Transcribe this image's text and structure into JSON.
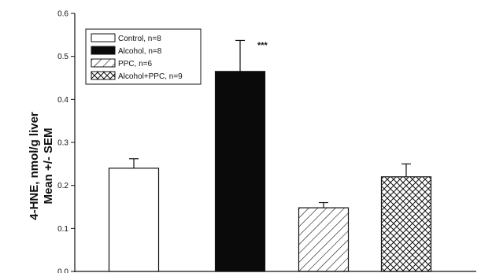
{
  "chart_data": {
    "type": "bar",
    "categories": [
      "Control, n=8",
      "Alcohol, n=8",
      "PPC, n=6",
      "Alcohol+PPC, n=9"
    ],
    "values": [
      0.24,
      0.465,
      0.148,
      0.22
    ],
    "errors": [
      0.022,
      0.072,
      0.012,
      0.03
    ],
    "fills": [
      "white",
      "black",
      "hatch",
      "crosshatch"
    ],
    "ylabel_line1": "4-HNE, nmol/g liver",
    "ylabel_line2": "Mean +/- SEM",
    "ylim": [
      0,
      0.6
    ],
    "yticks": [
      "0.0",
      "0.1",
      "0.2",
      "0.3",
      "0.4",
      "0.5",
      "0.6"
    ],
    "annotation": "***",
    "legend_position": "top-left",
    "colors": {
      "axis": "#111111",
      "bar_dark": "#0a0a0a"
    }
  }
}
